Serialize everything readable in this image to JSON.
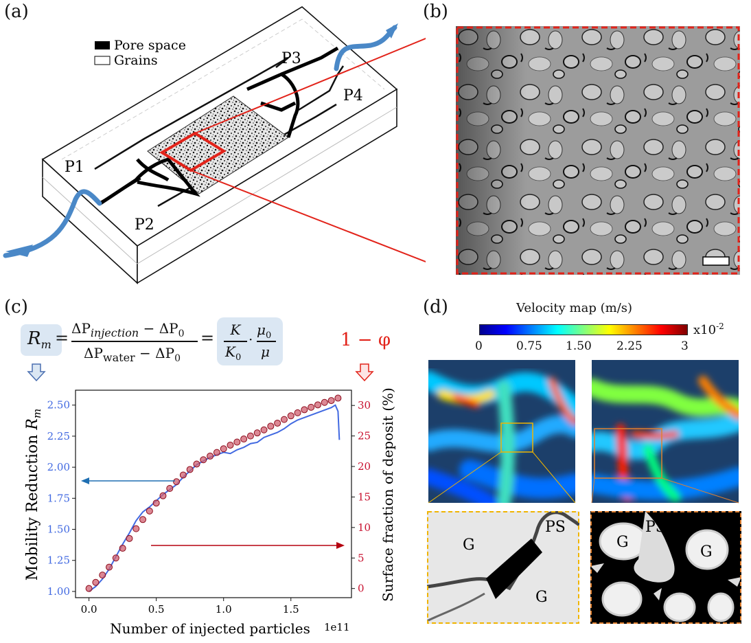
{
  "panels": {
    "a": {
      "label": "(a)",
      "legend": {
        "pore": "Pore space",
        "grains": "Grains"
      },
      "ports": [
        "P1",
        "P2",
        "P3",
        "P4"
      ]
    },
    "b": {
      "label": "(b)"
    },
    "c": {
      "label": "(c)",
      "equation": {
        "lhs": "R",
        "lhs_sub": "m",
        "equals": "=",
        "num_a": "ΔP",
        "num_a_sub": "injection",
        "num_minus": "−",
        "num_b": "ΔP",
        "num_b_sub": "0",
        "den_a": "ΔP",
        "den_a_sub": "water",
        "den_minus": "−",
        "den_b": "ΔP",
        "den_b_sub": "0",
        "k": "K",
        "k0": "K",
        "k0_sub": "0",
        "dot": "·",
        "mu0": "μ",
        "mu0_sub": "0",
        "mu": "μ"
      },
      "phi_label": "1 − φ"
    },
    "d": {
      "label": "(d)",
      "colorbar_title": "Velocity map (m/s)",
      "colorbar_ticks": [
        "0",
        "0.75",
        "1.50",
        "2.25",
        "3"
      ],
      "colorbar_scale": "x10",
      "colorbar_exp": "-2",
      "zoom_left": {
        "g1": "G",
        "g2": "G",
        "ps": "PS"
      },
      "zoom_right": {
        "g1": "G",
        "g2": "G",
        "ps": "PS"
      }
    }
  },
  "chart_data": {
    "type": "line",
    "xlabel": "Number of injected particles",
    "x_offset": "1e11",
    "ylabel_left": "Mobility Reduction",
    "ylabel_left_sym": "R",
    "ylabel_left_sub": "m",
    "ylabel_right": "Surface fraction of deposit (%)",
    "xlim": [
      -0.1,
      1.95
    ],
    "ylim_left": [
      0.95,
      2.62
    ],
    "ylim_right": [
      -1.5,
      32.5
    ],
    "xticks": [
      "0.0",
      "0.5",
      "1.0",
      "1.5"
    ],
    "yticks_left": [
      "1.00",
      "1.25",
      "1.50",
      "1.75",
      "2.00",
      "2.25",
      "2.50"
    ],
    "yticks_right": [
      "0",
      "5",
      "10",
      "15",
      "20",
      "25",
      "30"
    ],
    "colors": {
      "left": "#4169e1",
      "right": "#c8102e",
      "arrow_left": "#1f6fb2",
      "arrow_right": "#b5000f"
    },
    "series": [
      {
        "axis": "left",
        "marker": "line",
        "x": [
          0.0,
          0.05,
          0.1,
          0.15,
          0.2,
          0.25,
          0.3,
          0.35,
          0.4,
          0.45,
          0.5,
          0.55,
          0.6,
          0.65,
          0.7,
          0.75,
          0.8,
          0.85,
          0.9,
          0.95,
          1.0,
          1.05,
          1.1,
          1.15,
          1.2,
          1.25,
          1.3,
          1.35,
          1.4,
          1.45,
          1.5,
          1.55,
          1.6,
          1.65,
          1.7,
          1.75,
          1.8,
          1.83,
          1.85,
          1.86
        ],
        "y": [
          1.0,
          1.04,
          1.1,
          1.18,
          1.28,
          1.38,
          1.47,
          1.57,
          1.64,
          1.68,
          1.73,
          1.78,
          1.82,
          1.86,
          1.92,
          1.97,
          2.02,
          2.05,
          2.08,
          2.1,
          2.12,
          2.11,
          2.14,
          2.16,
          2.19,
          2.2,
          2.24,
          2.26,
          2.28,
          2.31,
          2.35,
          2.38,
          2.4,
          2.42,
          2.44,
          2.46,
          2.48,
          2.5,
          2.45,
          2.22
        ]
      },
      {
        "axis": "right",
        "marker": "circle",
        "x": [
          0.0,
          0.05,
          0.1,
          0.15,
          0.2,
          0.25,
          0.3,
          0.35,
          0.4,
          0.45,
          0.5,
          0.55,
          0.6,
          0.65,
          0.7,
          0.75,
          0.8,
          0.85,
          0.9,
          0.95,
          1.0,
          1.05,
          1.1,
          1.15,
          1.2,
          1.25,
          1.3,
          1.35,
          1.4,
          1.45,
          1.5,
          1.55,
          1.6,
          1.65,
          1.7,
          1.75,
          1.8,
          1.85
        ],
        "y": [
          0.0,
          1.0,
          2.2,
          3.5,
          5.0,
          6.6,
          8.2,
          9.8,
          11.3,
          12.7,
          14.0,
          15.2,
          16.4,
          17.5,
          18.6,
          19.5,
          20.4,
          21.1,
          21.7,
          22.3,
          22.9,
          23.5,
          24.0,
          24.5,
          25.0,
          25.5,
          26.0,
          26.6,
          27.1,
          27.7,
          28.3,
          28.8,
          29.3,
          29.7,
          30.1,
          30.5,
          30.8,
          31.2
        ]
      }
    ]
  }
}
